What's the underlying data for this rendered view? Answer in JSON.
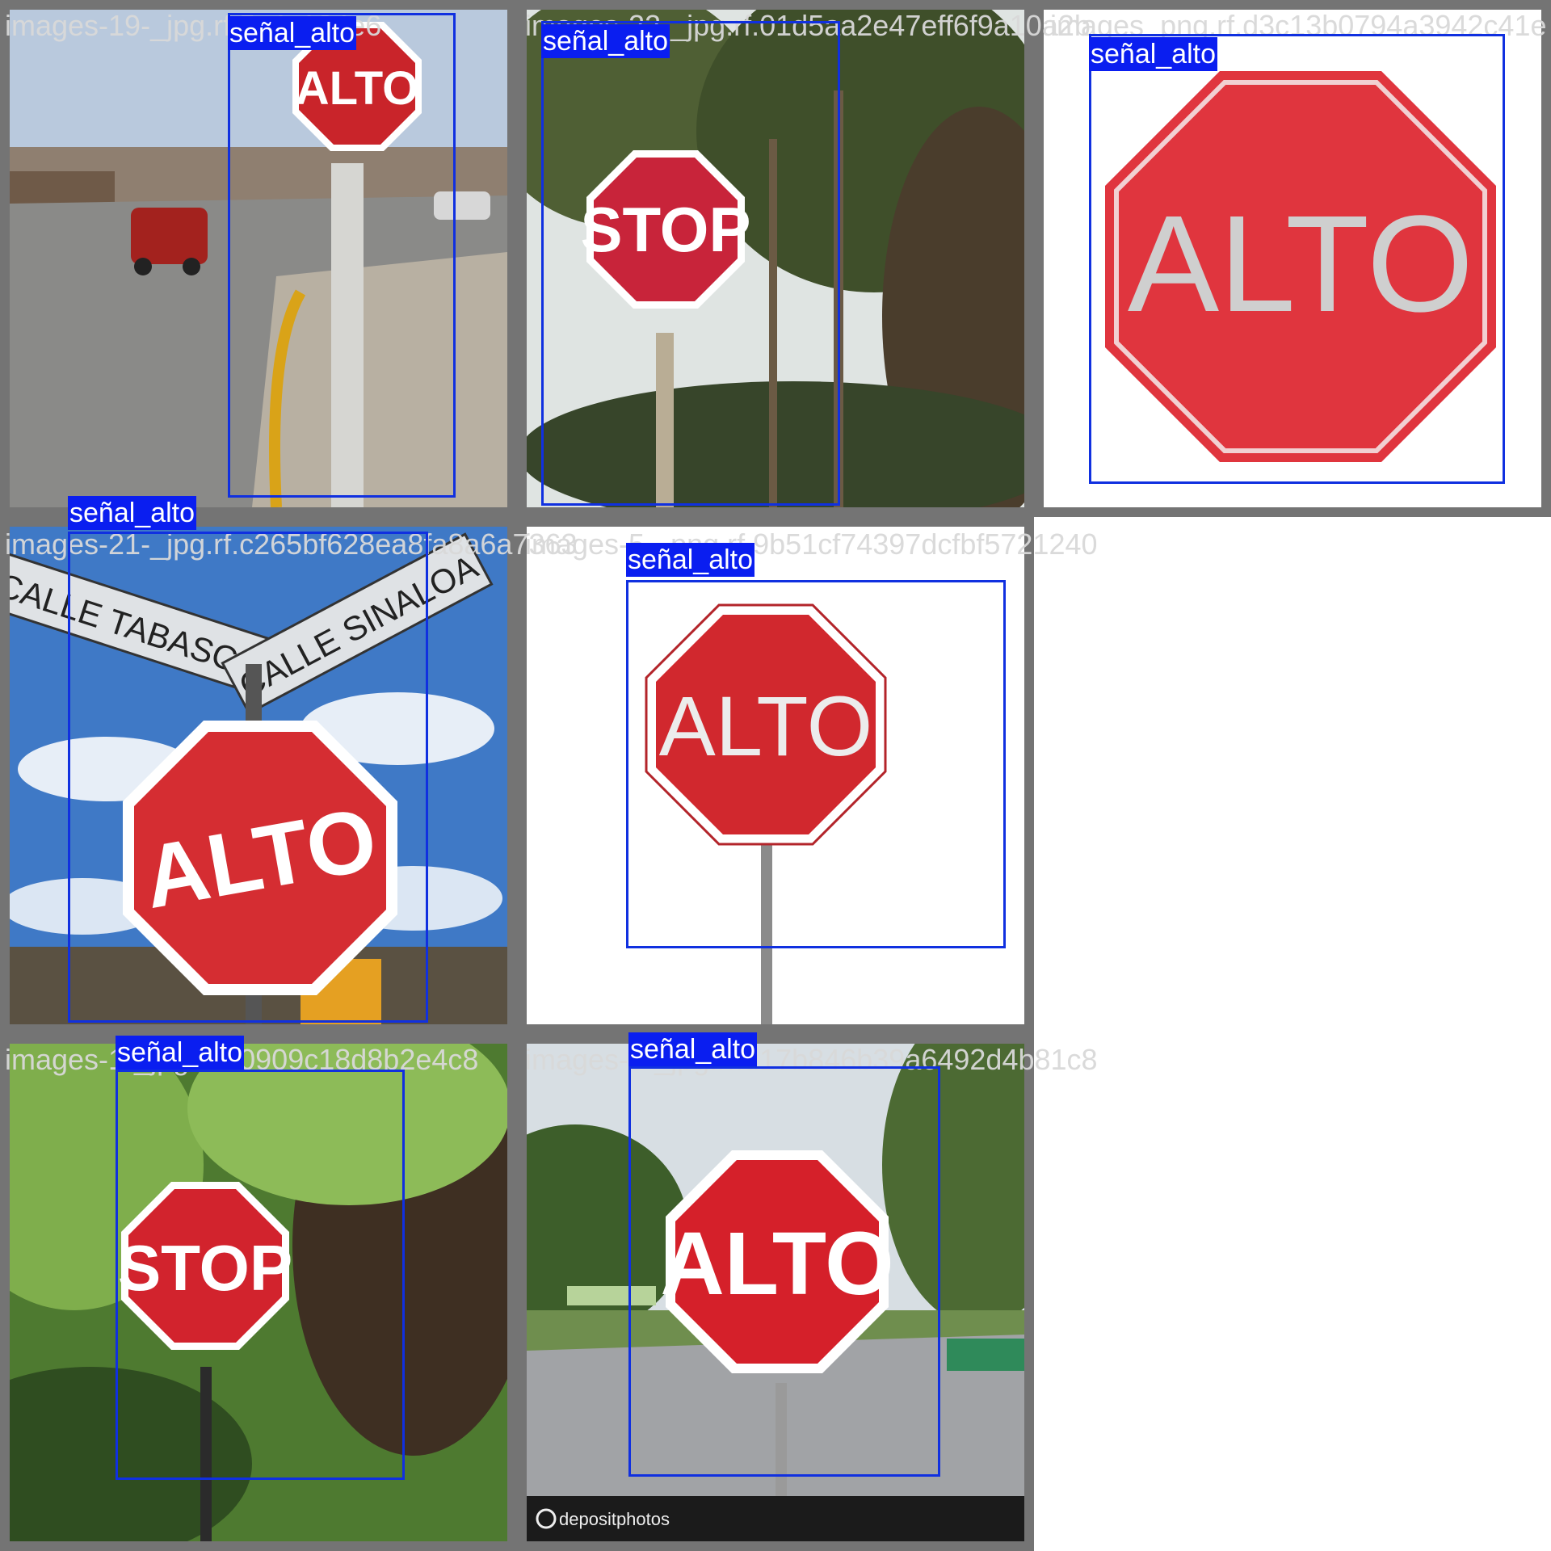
{
  "class_label": "señal_alto",
  "colors": {
    "box": "#1030e0",
    "label_bg": "#0a1ef0",
    "tile_border": "#747474",
    "filename_text": "#d9d9d9"
  },
  "tiles": [
    {
      "filename": "images-19-_jpg.rf.5c4c124e6",
      "sign_text": "ALTO"
    },
    {
      "filename": "images-22-_jpg.rf.01d5aa2e47eff6f9a10a2b",
      "sign_text": "STOP"
    },
    {
      "filename": "images_png.rf.d3c13b0794a3942c41e",
      "sign_text": "ALTO"
    },
    {
      "filename": "images-21-_jpg.rf.c265bf628ea8fa8a6a7363",
      "sign_text": "ALTO",
      "street_signs": [
        "CALLE TABASCO",
        "CALLE SINALOA"
      ]
    },
    {
      "filename": "images-5-_png.rf.9b51cf74397dcfbf5721240",
      "sign_text": "ALTO"
    },
    {
      "filename": "images-1-_jpg.rf.90909c18d8b2e4c8",
      "sign_text": "STOP"
    },
    {
      "filename": "images-3-_jpg.rf.d17b846b39a6492d4b81c8",
      "sign_text": "ALTO",
      "watermark": "depositphotos"
    }
  ]
}
